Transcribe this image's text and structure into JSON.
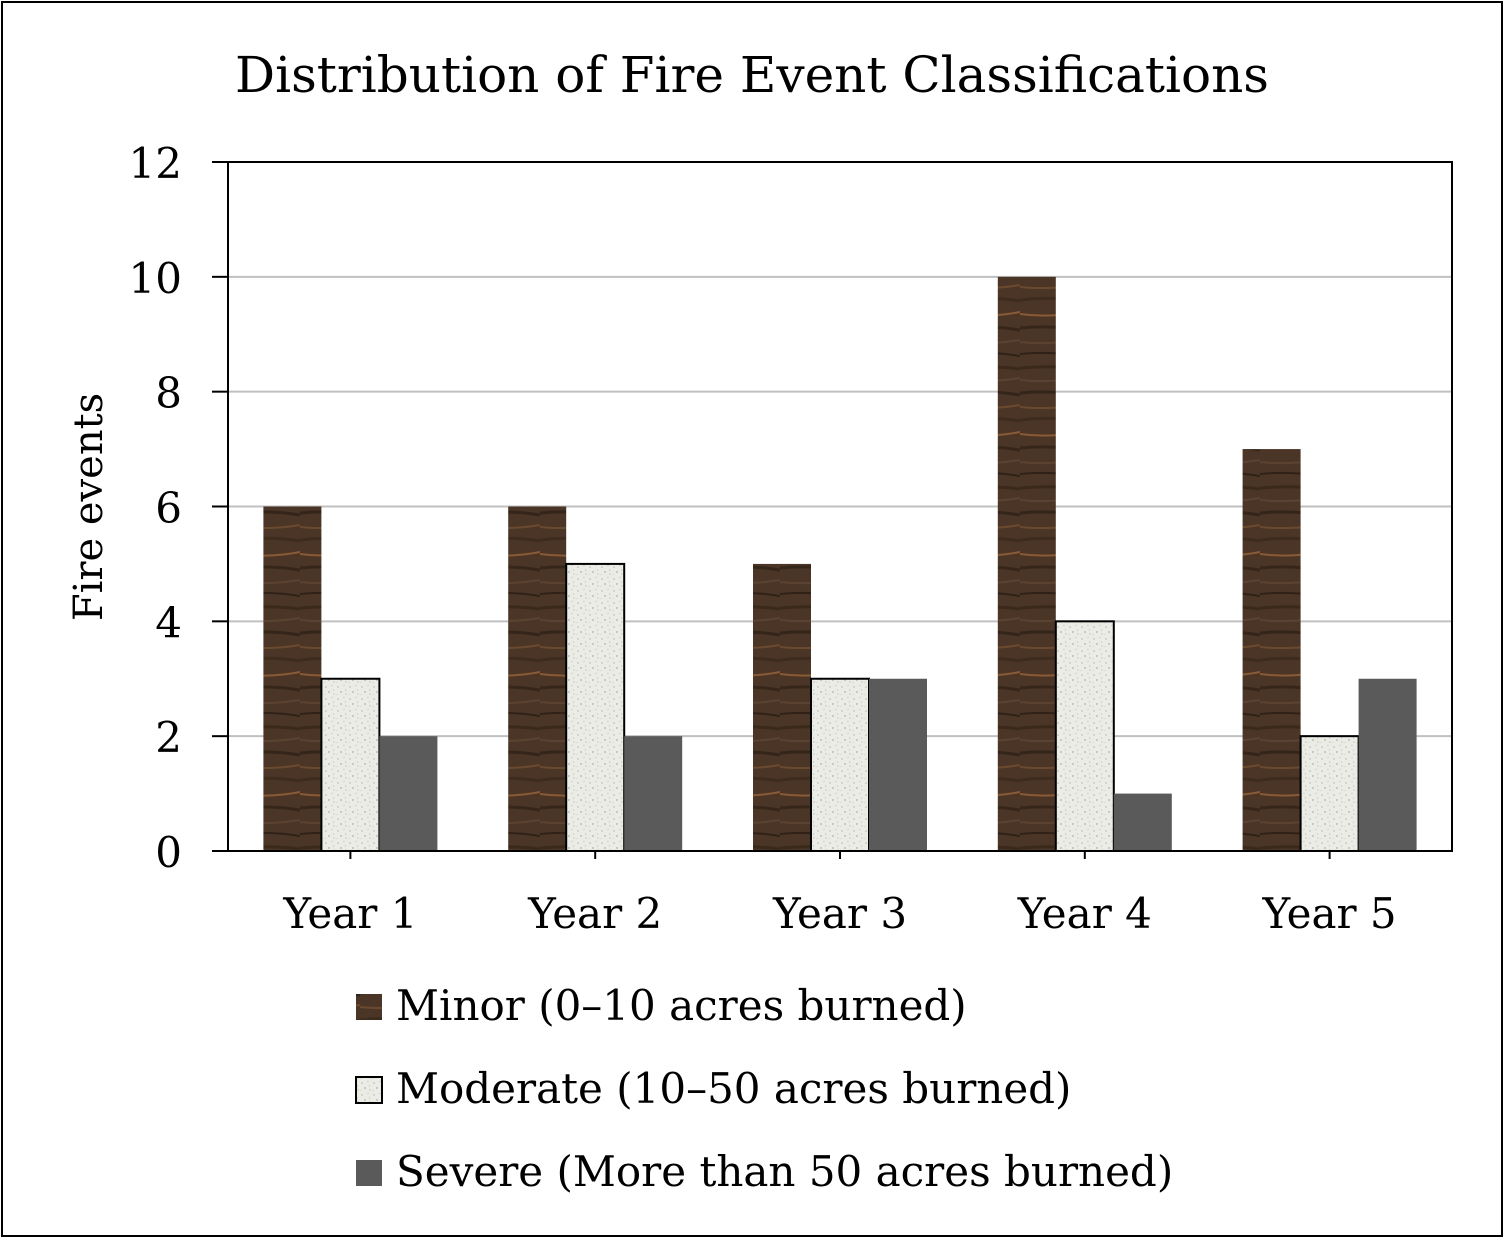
{
  "chart_data": {
    "type": "bar",
    "title": "Distribution of Fire Event Classifications",
    "xlabel": "",
    "ylabel": "Fire events",
    "categories": [
      "Year 1",
      "Year 2",
      "Year 3",
      "Year 4",
      "Year 5"
    ],
    "ylim": [
      0,
      12
    ],
    "yticks": [
      "0",
      "2",
      "4",
      "6",
      "8",
      "10",
      "12"
    ],
    "grid": true,
    "legend_position": "bottom",
    "series": [
      {
        "name": "Minor (0–10 acres burned)",
        "values": [
          6,
          6,
          5,
          10,
          7
        ],
        "color": "#4a3526",
        "pattern": "wood"
      },
      {
        "name": "Moderate (10–50 acres burned)",
        "values": [
          3,
          5,
          3,
          4,
          2
        ],
        "color": "#ecece6",
        "pattern": "speckle"
      },
      {
        "name": "Severe (More than 50 acres burned)",
        "values": [
          2,
          2,
          3,
          1,
          3
        ],
        "color": "#5a5a5a",
        "pattern": "solid"
      }
    ]
  },
  "colors": {
    "frame": "#000000",
    "gridline": "#c0c0c0",
    "axis": "#000000"
  }
}
